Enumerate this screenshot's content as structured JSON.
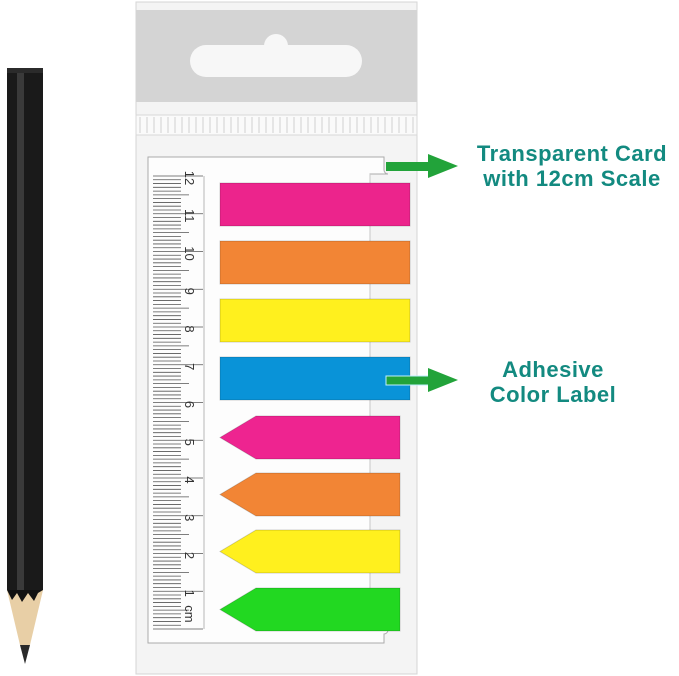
{
  "ruler": {
    "unit_label": "cm",
    "numbers": [
      "1",
      "2",
      "3",
      "4",
      "5",
      "6",
      "7",
      "8",
      "9",
      "10",
      "11",
      "12"
    ]
  },
  "flags": [
    {
      "shape": "rectangle",
      "color": "#ec248c"
    },
    {
      "shape": "rectangle",
      "color": "#f28535"
    },
    {
      "shape": "rectangle",
      "color": "#fff01e"
    },
    {
      "shape": "rectangle",
      "color": "#0993d8"
    },
    {
      "shape": "arrow",
      "color": "#ee2490"
    },
    {
      "shape": "arrow",
      "color": "#f28535"
    },
    {
      "shape": "arrow",
      "color": "#fff01e"
    },
    {
      "shape": "arrow",
      "color": "#22d821"
    }
  ],
  "callouts": {
    "card": {
      "line1": "Transparent Card",
      "line2": "with 12cm Scale"
    },
    "label": {
      "line1": "Adhesive",
      "line2": "Color Label"
    }
  },
  "colors": {
    "callout_text": "#138a80",
    "callout_arrow": "#22a33a"
  }
}
